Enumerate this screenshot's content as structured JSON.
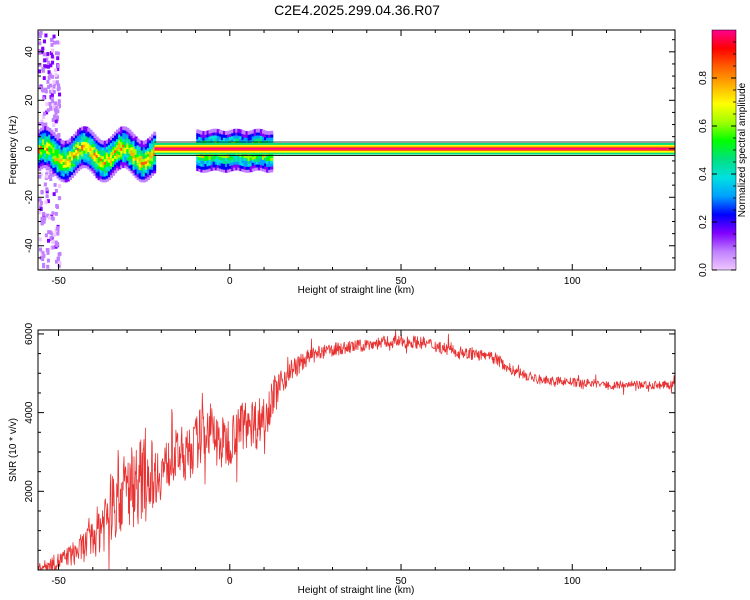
{
  "title": "C2E4.2025.299.04.36.R07",
  "colors": {
    "signal": "#e83232",
    "axis": "#000000",
    "background": "#ffffff",
    "colormap": [
      "#f0c8ff",
      "#c080ff",
      "#8000ff",
      "#0000ff",
      "#00a0ff",
      "#00e0e0",
      "#00e080",
      "#00ff00",
      "#a0ff00",
      "#ffff00",
      "#ffb000",
      "#ff6000",
      "#ff0000",
      "#ff0090"
    ]
  },
  "chart_data": [
    {
      "type": "heatmap",
      "name": "spectrogram",
      "title": "C2E4.2025.299.04.36.R07",
      "xlabel": "Height of straight line (km)",
      "ylabel": "Frequency (Hz)",
      "xlim": [
        -56,
        130
      ],
      "ylim": [
        -50,
        49
      ],
      "xticks": [
        -50,
        0,
        50,
        100
      ],
      "xtick_labels": [
        "-50",
        "0",
        "50",
        "100"
      ],
      "yticks": [
        -40,
        -20,
        0,
        20,
        40
      ],
      "ytick_labels": [
        "-40",
        "-20",
        "0",
        "20",
        "40"
      ],
      "carrier_frequency": 0,
      "steady_from_km": -22,
      "colorbar": {
        "label": "Normalized spectral amplitude",
        "range": [
          0,
          1
        ],
        "ticks": [
          0.0,
          0.2,
          0.4,
          0.6,
          0.8
        ],
        "tick_labels": [
          "0.0",
          "0.2",
          "0.4",
          "0.6",
          "0.8"
        ]
      }
    },
    {
      "type": "line",
      "name": "snr",
      "xlabel": "Height of straight line (km)",
      "ylabel": "SNR (10 * v/v)",
      "xlim": [
        -56,
        130
      ],
      "ylim": [
        0,
        6100
      ],
      "xticks": [
        -50,
        0,
        50,
        100
      ],
      "xtick_labels": [
        "-50",
        "0",
        "50",
        "100"
      ],
      "yticks": [
        2000,
        4000,
        6000
      ],
      "ytick_labels": [
        "2000",
        "4000",
        "6000"
      ],
      "series": [
        {
          "name": "SNR",
          "x": [
            -56,
            -52,
            -48,
            -44,
            -40,
            -36,
            -32,
            -28,
            -26,
            -24,
            -22,
            -20,
            -18,
            -16,
            -14,
            -12,
            -10,
            -8,
            -6,
            -4,
            -2,
            0,
            2,
            4,
            6,
            8,
            10,
            12,
            14,
            16,
            18,
            20,
            22,
            24,
            26,
            28,
            30,
            34,
            38,
            42,
            46,
            50,
            54,
            58,
            62,
            66,
            70,
            74,
            78,
            82,
            86,
            90,
            94,
            98,
            102,
            106,
            110,
            114,
            118,
            122,
            126,
            130
          ],
          "values": [
            50,
            150,
            300,
            500,
            800,
            1400,
            1900,
            2200,
            2300,
            2500,
            2400,
            2500,
            2700,
            2900,
            3000,
            2900,
            3200,
            3500,
            3600,
            3300,
            3200,
            3300,
            3600,
            3700,
            3800,
            3700,
            4000,
            4300,
            4600,
            4900,
            5100,
            5200,
            5350,
            5450,
            5500,
            5550,
            5600,
            5650,
            5700,
            5750,
            5800,
            5800,
            5800,
            5750,
            5650,
            5550,
            5500,
            5450,
            5350,
            5100,
            4950,
            4850,
            4800,
            4800,
            4750,
            4750,
            4700,
            4700,
            4700,
            4700,
            4700,
            4700
          ],
          "noise": [
            100,
            200,
            250,
            350,
            500,
            900,
            1000,
            1100,
            1100,
            1000,
            800,
            700,
            650,
            650,
            650,
            650,
            700,
            750,
            750,
            750,
            700,
            650,
            650,
            650,
            650,
            650,
            600,
            550,
            450,
            350,
            280,
            250,
            220,
            200,
            190,
            180,
            170,
            160,
            160,
            160,
            160,
            160,
            160,
            160,
            160,
            150,
            150,
            150,
            150,
            140,
            130,
            120,
            110,
            110,
            110,
            110,
            110,
            110,
            110,
            110,
            110,
            110
          ]
        }
      ]
    }
  ]
}
